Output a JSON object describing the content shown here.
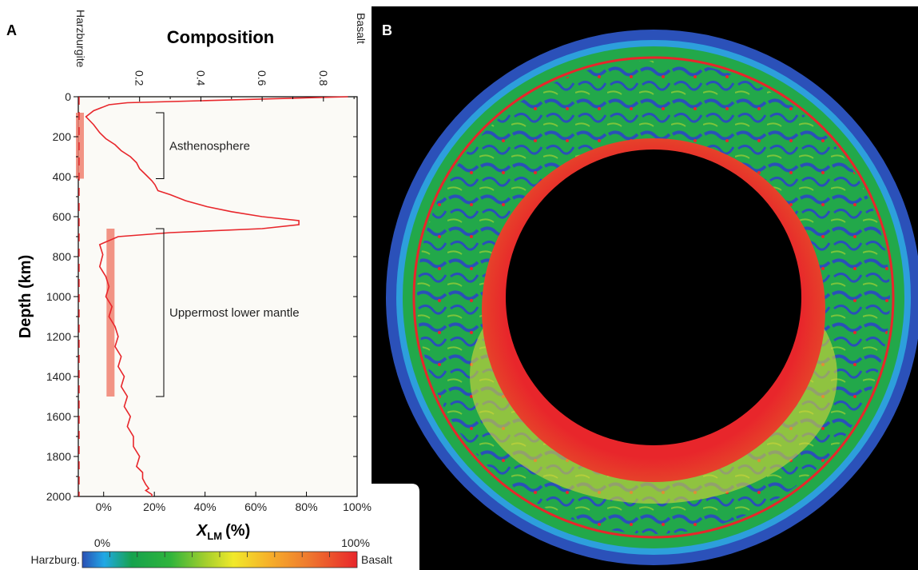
{
  "panels": {
    "a_label": "A",
    "b_label": "B"
  },
  "chart_data": [
    {
      "type": "line",
      "panel": "A",
      "title": "Composition",
      "ylabel": "Depth (km)",
      "xlabel_main": "X",
      "xlabel_sub": "LM",
      "xlabel_unit": "(%)",
      "ylim": [
        0,
        2000
      ],
      "y_inverted": true,
      "y_ticks": [
        0,
        200,
        400,
        600,
        800,
        1000,
        1200,
        1400,
        1600,
        1800,
        2000
      ],
      "y_tick_labels": [
        "0",
        "200",
        "400",
        "600",
        "800",
        "1000",
        "1200",
        "1400",
        "1600",
        "1800",
        "2000"
      ],
      "top_axis": {
        "xlim": [
          0.0,
          0.91
        ],
        "ticks": [
          0.2,
          0.4,
          0.6,
          0.8
        ],
        "tick_labels": [
          "0.2",
          "0.4",
          "0.6",
          "0.8"
        ],
        "left_end_label": "Harzburgite",
        "right_end_label": "Basalt"
      },
      "bottom_axis": {
        "xlim": [
          -10,
          100
        ],
        "ticks": [
          0,
          20,
          40,
          60,
          80,
          100
        ],
        "tick_labels": [
          "0%",
          "20%",
          "40%",
          "60%",
          "80%",
          "100%"
        ]
      },
      "series": [
        {
          "color": "#e8262b",
          "x": [
            0.88,
            0.4,
            0.16,
            0.1,
            0.05,
            0.025,
            0.05,
            0.07,
            0.09,
            0.12,
            0.14,
            0.17,
            0.19,
            0.2,
            0.22,
            0.24,
            0.25,
            0.26,
            0.3,
            0.35,
            0.42,
            0.5,
            0.6,
            0.72,
            0.72,
            0.6,
            0.3,
            0.13,
            0.07,
            0.08,
            0.07,
            0.09,
            0.1,
            0.09,
            0.11,
            0.1,
            0.12,
            0.13,
            0.12,
            0.14,
            0.13,
            0.15,
            0.14,
            0.16,
            0.15,
            0.17,
            0.16,
            0.18,
            0.18,
            0.2,
            0.19,
            0.21,
            0.21,
            0.22,
            0.23,
            0.22,
            0.23,
            0.24,
            0.24
          ],
          "y": [
            0,
            20,
            30,
            40,
            70,
            100,
            140,
            180,
            210,
            240,
            270,
            300,
            330,
            360,
            390,
            420,
            440,
            470,
            490,
            520,
            550,
            575,
            600,
            620,
            640,
            660,
            680,
            700,
            740,
            790,
            850,
            900,
            950,
            1000,
            1050,
            1100,
            1150,
            1200,
            1250,
            1300,
            1350,
            1400,
            1450,
            1500,
            1550,
            1600,
            1650,
            1700,
            1750,
            1800,
            1850,
            1880,
            1910,
            1940,
            1960,
            1970,
            1980,
            1990,
            2000
          ]
        }
      ],
      "reference_line": {
        "x": 0.0,
        "style": "dashed",
        "color": "#e8262b"
      },
      "shaded_bands": [
        {
          "x": 0.0,
          "y_start": 80,
          "y_end": 410,
          "color": "#f08070"
        },
        {
          "x": 0.1,
          "y_start": 660,
          "y_end": 1500,
          "color": "#f08070"
        }
      ],
      "annotations": [
        {
          "text": "Asthenosphere",
          "y_start": 80,
          "y_end": 410
        },
        {
          "text": "Uppermost lower mantle",
          "y_start": 660,
          "y_end": 1500
        }
      ],
      "colorbar": {
        "left_label": "Harzburg.",
        "right_label": "Basalt",
        "min_label": "0%",
        "max_label": "100%",
        "stops": [
          "#2a4fb4",
          "#21a8e6",
          "#16a24d",
          "#2fb43c",
          "#a5cf2d",
          "#f1e92a",
          "#f6b02a",
          "#ef7a2e",
          "#e8262b"
        ]
      }
    },
    {
      "type": "heatmap",
      "panel": "B",
      "description_colors": {
        "background": "#000000",
        "outer_band": "#2a50b8",
        "mantle": "#22a84a",
        "lower_layer": "#e8262b",
        "transition": "#d8d53a"
      }
    }
  ]
}
